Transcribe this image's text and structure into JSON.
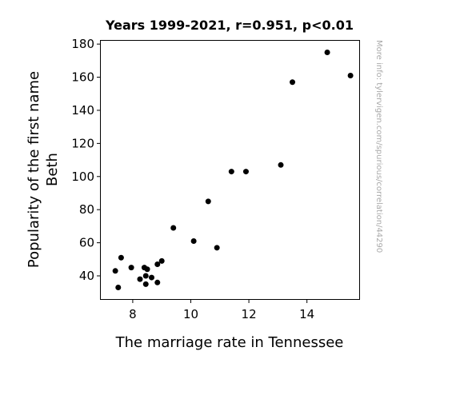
{
  "chart_data": {
    "type": "scatter",
    "title": "Years 1999-2021, r=0.951, p<0.01",
    "xlabel": "The marriage rate in Tennessee",
    "ylabel_lines": [
      "Popularity of the first name",
      "Beth"
    ],
    "xlim": [
      6.9,
      15.8
    ],
    "ylim": [
      26,
      182
    ],
    "xticks": [
      8,
      10,
      12,
      14
    ],
    "yticks": [
      40,
      60,
      80,
      100,
      120,
      140,
      160,
      180
    ],
    "grid": false,
    "point_color": "#000000",
    "points": [
      {
        "x": 7.4,
        "y": 43
      },
      {
        "x": 7.5,
        "y": 33
      },
      {
        "x": 7.6,
        "y": 51
      },
      {
        "x": 7.95,
        "y": 45
      },
      {
        "x": 8.25,
        "y": 38
      },
      {
        "x": 8.4,
        "y": 45
      },
      {
        "x": 8.45,
        "y": 40
      },
      {
        "x": 8.5,
        "y": 44
      },
      {
        "x": 8.45,
        "y": 35
      },
      {
        "x": 8.65,
        "y": 39
      },
      {
        "x": 8.85,
        "y": 36
      },
      {
        "x": 8.85,
        "y": 47
      },
      {
        "x": 9.0,
        "y": 49
      },
      {
        "x": 9.4,
        "y": 69
      },
      {
        "x": 10.1,
        "y": 61
      },
      {
        "x": 10.6,
        "y": 85
      },
      {
        "x": 10.9,
        "y": 57
      },
      {
        "x": 11.4,
        "y": 103
      },
      {
        "x": 11.9,
        "y": 103
      },
      {
        "x": 13.1,
        "y": 107
      },
      {
        "x": 13.5,
        "y": 157
      },
      {
        "x": 14.7,
        "y": 175
      },
      {
        "x": 15.5,
        "y": 161
      }
    ]
  },
  "watermark": "More info: tylervigen.com/spurious/correlation/44290"
}
